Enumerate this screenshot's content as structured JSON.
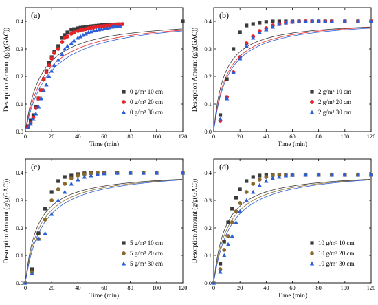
{
  "chart_data": [
    {
      "type": "scatter",
      "panel_label": "(a)",
      "xlabel": "Time (min)",
      "ylabel": "Desorption Amount (g/g(GAC))",
      "xlim": [
        0,
        120
      ],
      "ylim": [
        0,
        0.45
      ],
      "xticks": [
        0,
        20,
        40,
        60,
        80,
        100,
        120
      ],
      "yticks": [
        0.0,
        0.1,
        0.2,
        0.3,
        0.4
      ],
      "legend_position": "lower-right",
      "series": [
        {
          "name": "0 g/m³ 10 cm",
          "color": "#3a3a3a",
          "marker": "square",
          "x": [
            2,
            4,
            6,
            8,
            10,
            12,
            14,
            16,
            18,
            20,
            22,
            25,
            28,
            30,
            32,
            35,
            37,
            40,
            42,
            44,
            46,
            48,
            50,
            52,
            54,
            56,
            58,
            60,
            62,
            64,
            66,
            68,
            70,
            72,
            120
          ],
          "y": [
            0.02,
            0.04,
            0.06,
            0.09,
            0.12,
            0.15,
            0.19,
            0.22,
            0.25,
            0.27,
            0.29,
            0.31,
            0.34,
            0.35,
            0.36,
            0.37,
            0.372,
            0.375,
            0.377,
            0.378,
            0.38,
            0.381,
            0.382,
            0.383,
            0.384,
            0.385,
            0.386,
            0.386,
            0.387,
            0.387,
            0.388,
            0.388,
            0.389,
            0.389,
            0.4
          ]
        },
        {
          "name": "0 g/m³ 20 cm",
          "color": "#e5252a",
          "marker": "circle",
          "x": [
            2,
            4,
            6,
            8,
            10,
            12,
            14,
            16,
            18,
            20,
            22,
            25,
            28,
            30,
            32,
            35,
            37,
            40,
            42,
            44,
            46,
            48,
            50,
            52,
            54,
            56,
            58,
            60,
            62,
            64,
            66,
            68,
            70,
            72,
            74
          ],
          "y": [
            0.015,
            0.03,
            0.05,
            0.085,
            0.12,
            0.15,
            0.19,
            0.215,
            0.24,
            0.265,
            0.285,
            0.3,
            0.325,
            0.34,
            0.345,
            0.355,
            0.36,
            0.365,
            0.368,
            0.37,
            0.372,
            0.375,
            0.376,
            0.378,
            0.38,
            0.381,
            0.382,
            0.383,
            0.384,
            0.385,
            0.386,
            0.387,
            0.388,
            0.389,
            0.39
          ]
        },
        {
          "name": "0 g/m³ 30 cm",
          "color": "#2b5fd6",
          "marker": "triangle",
          "x": [
            2,
            4,
            6,
            8,
            10,
            12,
            14,
            16,
            18,
            20,
            22,
            25,
            28,
            30,
            32,
            35,
            37,
            40,
            42,
            44,
            46,
            48,
            50,
            52,
            54,
            56,
            58,
            60,
            62,
            64,
            66,
            68,
            70,
            72
          ],
          "y": [
            0.015,
            0.028,
            0.045,
            0.065,
            0.09,
            0.12,
            0.15,
            0.17,
            0.2,
            0.22,
            0.24,
            0.26,
            0.28,
            0.3,
            0.31,
            0.32,
            0.33,
            0.34,
            0.345,
            0.35,
            0.355,
            0.36,
            0.363,
            0.366,
            0.368,
            0.37,
            0.372,
            0.374,
            0.376,
            0.378,
            0.38,
            0.381,
            0.382,
            0.384
          ]
        }
      ],
      "fits": [
        {
          "color": "#3a3a3a",
          "qmax": 0.41,
          "k": 12
        },
        {
          "color": "#e5252a",
          "qmax": 0.414,
          "k": 15
        },
        {
          "color": "#2b5fd6",
          "qmax": 0.42,
          "k": 18
        }
      ]
    },
    {
      "type": "scatter",
      "panel_label": "(b)",
      "xlabel": "Time (min)",
      "ylabel": "Desorption Amount (g/g(GAC))",
      "xlim": [
        0,
        120
      ],
      "ylim": [
        0,
        0.45
      ],
      "xticks": [
        0,
        20,
        40,
        60,
        80,
        100,
        120
      ],
      "yticks": [
        0.0,
        0.1,
        0.2,
        0.3,
        0.4
      ],
      "legend_position": "lower-right",
      "series": [
        {
          "name": "2 g/m³ 10 cm",
          "color": "#3a3a3a",
          "marker": "square",
          "x": [
            5,
            10,
            15,
            20,
            25,
            30,
            35,
            40,
            45,
            50,
            55,
            60,
            65,
            70,
            75,
            80,
            85,
            90,
            100,
            110,
            120
          ],
          "y": [
            0.06,
            0.19,
            0.3,
            0.36,
            0.385,
            0.39,
            0.395,
            0.398,
            0.4,
            0.4,
            0.4,
            0.4,
            0.4,
            0.4,
            0.4,
            0.4,
            0.4,
            0.4,
            0.4,
            0.4,
            0.4
          ]
        },
        {
          "name": "2 g/m³ 20 cm",
          "color": "#e5252a",
          "marker": "circle",
          "x": [
            5,
            10,
            15,
            20,
            25,
            30,
            35,
            40,
            45,
            50,
            55,
            60,
            65,
            70,
            75,
            80,
            85,
            90,
            100,
            110,
            120
          ],
          "y": [
            0.04,
            0.125,
            0.215,
            0.27,
            0.32,
            0.345,
            0.365,
            0.375,
            0.385,
            0.39,
            0.395,
            0.398,
            0.4,
            0.4,
            0.4,
            0.4,
            0.4,
            0.4,
            0.4,
            0.4,
            0.4
          ]
        },
        {
          "name": "2 g/m³ 30 cm",
          "color": "#2b5fd6",
          "marker": "triangle",
          "x": [
            5,
            10,
            15,
            20,
            25,
            30,
            35,
            40,
            45,
            50,
            55,
            60,
            65,
            70,
            75,
            80,
            85,
            90,
            100,
            110,
            120
          ],
          "y": [
            0.045,
            0.12,
            0.215,
            0.265,
            0.31,
            0.34,
            0.36,
            0.37,
            0.38,
            0.39,
            0.395,
            0.398,
            0.4,
            0.4,
            0.4,
            0.4,
            0.4,
            0.4,
            0.4,
            0.4,
            0.4
          ]
        }
      ],
      "fits": [
        {
          "color": "#3a3a3a",
          "qmax": 0.405,
          "k": 8
        },
        {
          "color": "#e5252a",
          "qmax": 0.41,
          "k": 10
        },
        {
          "color": "#2b5fd6",
          "qmax": 0.41,
          "k": 11
        }
      ]
    },
    {
      "type": "scatter",
      "panel_label": "(c)",
      "xlabel": "Time (min)",
      "ylabel": "Desorption Amount (g/g(GAC))",
      "xlim": [
        0,
        120
      ],
      "ylim": [
        0,
        0.45
      ],
      "xticks": [
        0,
        20,
        40,
        60,
        80,
        100,
        120
      ],
      "yticks": [
        0.0,
        0.1,
        0.2,
        0.3,
        0.4
      ],
      "legend_position": "lower-right",
      "series": [
        {
          "name": "5 g/m³ 10 cm",
          "color": "#3a3a3a",
          "marker": "square",
          "x": [
            0,
            5,
            10,
            15,
            20,
            25,
            30,
            35,
            40,
            45,
            50,
            55,
            60,
            70,
            80,
            90,
            100,
            120
          ],
          "y": [
            0.0,
            0.05,
            0.18,
            0.27,
            0.33,
            0.37,
            0.385,
            0.39,
            0.395,
            0.398,
            0.4,
            0.4,
            0.4,
            0.4,
            0.4,
            0.4,
            0.4,
            0.4
          ]
        },
        {
          "name": "5 g/m³ 20 cm",
          "color": "#8a6a2c",
          "marker": "circle",
          "x": [
            0,
            5,
            10,
            15,
            20,
            25,
            30,
            35,
            40,
            45,
            50,
            55,
            60,
            70,
            80,
            90,
            100,
            120
          ],
          "y": [
            0.0,
            0.04,
            0.16,
            0.23,
            0.3,
            0.34,
            0.36,
            0.38,
            0.39,
            0.395,
            0.398,
            0.4,
            0.4,
            0.4,
            0.4,
            0.4,
            0.4,
            0.4
          ]
        },
        {
          "name": "5 g/m³ 30 cm",
          "color": "#2b5fd6",
          "marker": "triangle",
          "x": [
            0,
            5,
            10,
            15,
            20,
            25,
            30,
            35,
            40,
            45,
            50,
            55,
            60,
            70,
            80,
            90,
            100,
            120
          ],
          "y": [
            0.0,
            0.035,
            0.16,
            0.18,
            0.25,
            0.3,
            0.33,
            0.36,
            0.375,
            0.385,
            0.39,
            0.395,
            0.398,
            0.4,
            0.4,
            0.4,
            0.4,
            0.4
          ]
        }
      ],
      "fits": [
        {
          "color": "#3a3a3a",
          "qmax": 0.405,
          "k": 9
        },
        {
          "color": "#8a6a2c",
          "qmax": 0.41,
          "k": 11
        },
        {
          "color": "#2b5fd6",
          "qmax": 0.415,
          "k": 13
        }
      ]
    },
    {
      "type": "scatter",
      "panel_label": "(d)",
      "xlabel": "Time (min)",
      "ylabel": "Desorption Amount (g/g(GAC))",
      "xlim": [
        0,
        120
      ],
      "ylim": [
        0,
        0.45
      ],
      "xticks": [
        0,
        20,
        40,
        60,
        80,
        100,
        120
      ],
      "yticks": [
        0.0,
        0.1,
        0.2,
        0.3,
        0.4
      ],
      "legend_position": "lower-right",
      "series": [
        {
          "name": "10 g/m³ 10 cm",
          "color": "#3a3a3a",
          "marker": "square",
          "x": [
            0,
            5,
            8,
            11,
            14,
            17,
            20,
            25,
            30,
            35,
            40,
            45,
            50,
            55,
            60,
            70,
            80,
            90,
            100,
            110,
            120
          ],
          "y": [
            0.0,
            0.07,
            0.15,
            0.22,
            0.27,
            0.31,
            0.34,
            0.37,
            0.385,
            0.39,
            0.392,
            0.393,
            0.393,
            0.393,
            0.393,
            0.393,
            0.393,
            0.393,
            0.393,
            0.393,
            0.393
          ]
        },
        {
          "name": "10 g/m³ 20 cm",
          "color": "#8a6a2c",
          "marker": "circle",
          "x": [
            0,
            5,
            8,
            11,
            14,
            17,
            20,
            25,
            30,
            35,
            40,
            45,
            50,
            55,
            60,
            70,
            80,
            90,
            100,
            110,
            120
          ],
          "y": [
            0.0,
            0.05,
            0.12,
            0.17,
            0.22,
            0.26,
            0.29,
            0.33,
            0.36,
            0.375,
            0.385,
            0.39,
            0.392,
            0.393,
            0.393,
            0.393,
            0.393,
            0.393,
            0.393,
            0.393,
            0.393
          ]
        },
        {
          "name": "10 g/m³ 30 cm",
          "color": "#2b5fd6",
          "marker": "triangle",
          "x": [
            0,
            5,
            8,
            11,
            14,
            17,
            20,
            25,
            30,
            35,
            40,
            45,
            50,
            55,
            60,
            70,
            80,
            90,
            100,
            110,
            120
          ],
          "y": [
            0.0,
            0.04,
            0.1,
            0.14,
            0.17,
            0.22,
            0.26,
            0.3,
            0.33,
            0.355,
            0.37,
            0.38,
            0.385,
            0.39,
            0.392,
            0.393,
            0.393,
            0.393,
            0.393,
            0.393,
            0.393
          ]
        }
      ],
      "fits": [
        {
          "color": "#3a3a3a",
          "qmax": 0.405,
          "k": 9
        },
        {
          "color": "#8a6a2c",
          "qmax": 0.41,
          "k": 11
        },
        {
          "color": "#2b5fd6",
          "qmax": 0.415,
          "k": 13
        }
      ]
    }
  ]
}
